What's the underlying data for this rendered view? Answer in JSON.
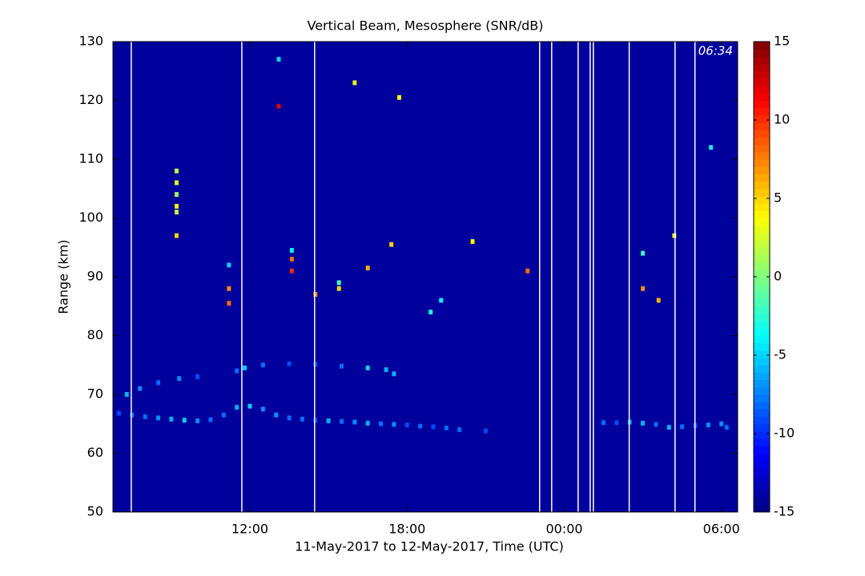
{
  "chart_data": {
    "type": "heatmap",
    "title": "Vertical Beam, Mesosphere (SNR/dB)",
    "x_label": "11-May-2017 to 12-May-2017, Time (UTC)",
    "y_label": "Range (km)",
    "annotation": "06:34",
    "xlim": [
      6.77,
      30.62
    ],
    "ylim": [
      50,
      130
    ],
    "xticks": [
      {
        "value": 12,
        "label": "12:00"
      },
      {
        "value": 18,
        "label": "18:00"
      },
      {
        "value": 24,
        "label": "00:00"
      },
      {
        "value": 30,
        "label": "06:00"
      }
    ],
    "yticks": [
      50,
      60,
      70,
      80,
      90,
      100,
      110,
      120,
      130
    ],
    "clim": [
      -15,
      15
    ],
    "cticks": [
      -15,
      -10,
      -5,
      0,
      5,
      10,
      15
    ],
    "colormap": "jet",
    "background": "#00009c",
    "gap_color": "#ffffff",
    "gaps": [
      7.47,
      11.69,
      14.47,
      23.06,
      23.52,
      24.53,
      24.99,
      25.11,
      26.48,
      28.23,
      28.99
    ],
    "x": [
      7.0,
      7.5,
      8.0,
      8.5,
      9.0,
      9.5,
      10.0,
      10.5,
      11.0,
      11.5,
      12.0,
      12.5,
      13.0,
      13.5,
      14.0,
      14.5,
      15.0,
      15.5,
      16.0,
      16.5,
      17.0,
      17.5,
      18.0,
      18.5,
      19.0,
      19.5,
      20.0,
      21.0,
      25.5,
      26.0,
      26.5,
      27.0,
      27.5,
      28.0,
      28.5,
      29.0,
      29.5,
      30.0,
      30.2,
      7.3,
      7.8,
      8.5,
      9.3,
      10.0,
      11.5,
      11.8,
      12.5,
      13.5,
      14.5,
      15.5,
      16.5,
      17.2,
      17.5,
      9.2,
      9.2,
      9.2,
      9.2,
      9.2,
      9.2,
      11.2,
      11.2,
      11.2,
      13.1,
      13.6,
      13.6,
      13.6,
      14.5,
      15.4,
      15.4,
      16.5,
      17.4,
      18.9,
      19.3,
      20.5,
      22.6,
      16.0,
      17.7,
      27.0,
      27.0,
      27.6,
      28.2,
      29.6,
      13.1
    ],
    "y": [
      66.8,
      66.5,
      66.2,
      66.0,
      65.8,
      65.6,
      65.5,
      65.7,
      66.5,
      67.8,
      68.0,
      67.5,
      66.5,
      66.0,
      65.8,
      65.6,
      65.5,
      65.4,
      65.3,
      65.1,
      65.0,
      64.9,
      64.8,
      64.6,
      64.5,
      64.3,
      64.0,
      63.8,
      65.2,
      65.2,
      65.3,
      65.1,
      64.9,
      64.4,
      64.5,
      64.7,
      64.8,
      65.0,
      64.4,
      70.0,
      71.0,
      72.0,
      72.7,
      73.0,
      74.0,
      74.5,
      75.0,
      75.2,
      75.1,
      74.8,
      74.5,
      74.2,
      73.5,
      108,
      106,
      104,
      102,
      101,
      97,
      88,
      85.5,
      92,
      119,
      91,
      93,
      94.5,
      87,
      88,
      89,
      91.5,
      95.5,
      84,
      86,
      96,
      91,
      123,
      120.5,
      88,
      94,
      86,
      97,
      112,
      127
    ],
    "values": [
      -9,
      -8,
      -8,
      -7,
      -6,
      -5,
      -7,
      -8,
      -8,
      -6,
      -5,
      -7,
      -7,
      -8,
      -8,
      -9,
      -6,
      -8,
      -7,
      -6,
      -8,
      -7,
      -9,
      -8,
      -9,
      -8,
      -8,
      -9,
      -8,
      -9,
      -7,
      -6,
      -8,
      -6,
      -8,
      -9,
      -7,
      -7,
      -8,
      -6,
      -7,
      -8,
      -7,
      -9,
      -8,
      -5,
      -8,
      -9,
      -9,
      -8,
      -5,
      -6,
      -6,
      2,
      3,
      1,
      4,
      2,
      5,
      7,
      8,
      -5,
      12,
      10,
      8,
      -4,
      7,
      5,
      -2,
      6,
      5,
      -3,
      -4,
      4,
      8,
      3,
      4,
      7,
      -2,
      6,
      3,
      -4,
      -5
    ]
  }
}
